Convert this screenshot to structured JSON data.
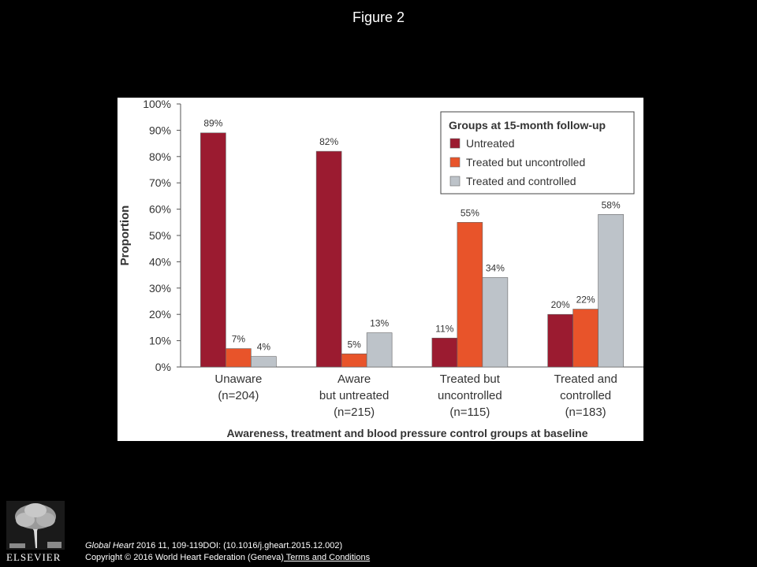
{
  "page": {
    "title": "Figure 2"
  },
  "footer": {
    "journal": "Global Heart",
    "citation": " 2016 11, 109-119DOI: (10.1016/j.gheart.2015.12.002)",
    "copyright": "Copyright © 2016 World Heart Federation (Geneva)",
    "terms_link": " Terms and Conditions"
  },
  "logo": {
    "word": "ELSEVIER",
    "icon": "elsevier-tree-icon"
  },
  "colors": {
    "untreated": "#9b1b30",
    "treated_uncontrolled": "#e8542a",
    "treated_controlled": "#bdc3c9",
    "axis": "#555555",
    "text": "#333333"
  },
  "chart_data": {
    "type": "bar",
    "title": "",
    "xlabel": "Awareness, treatment and blood pressure control groups at baseline",
    "ylabel": "Proportion",
    "ylim": [
      0,
      100
    ],
    "yticks": [
      "0%",
      "10%",
      "20%",
      "30%",
      "40%",
      "50%",
      "60%",
      "70%",
      "80%",
      "90%",
      "100%"
    ],
    "grid": false,
    "legend": {
      "title": "Groups at 15-month follow-up",
      "placement": "top-right"
    },
    "categories": [
      [
        "Unaware",
        "(n=204)"
      ],
      [
        "Aware",
        "but untreated",
        "(n=215)"
      ],
      [
        "Treated but",
        "uncontrolled",
        "(n=115)"
      ],
      [
        "Treated and",
        "controlled",
        "(n=183)"
      ]
    ],
    "series": [
      {
        "name": "Untreated",
        "color": "#9b1b30",
        "values": [
          89,
          82,
          11,
          20
        ],
        "labels": [
          "89%",
          "82%",
          "11%",
          "20%"
        ]
      },
      {
        "name": "Treated but uncontrolled",
        "color": "#e8542a",
        "values": [
          7,
          5,
          55,
          22
        ],
        "labels": [
          "7%",
          "5%",
          "55%",
          "22%"
        ]
      },
      {
        "name": "Treated and controlled",
        "color": "#bdc3c9",
        "values": [
          4,
          13,
          34,
          58
        ],
        "labels": [
          "4%",
          "13%",
          "34%",
          "58%"
        ]
      }
    ]
  }
}
